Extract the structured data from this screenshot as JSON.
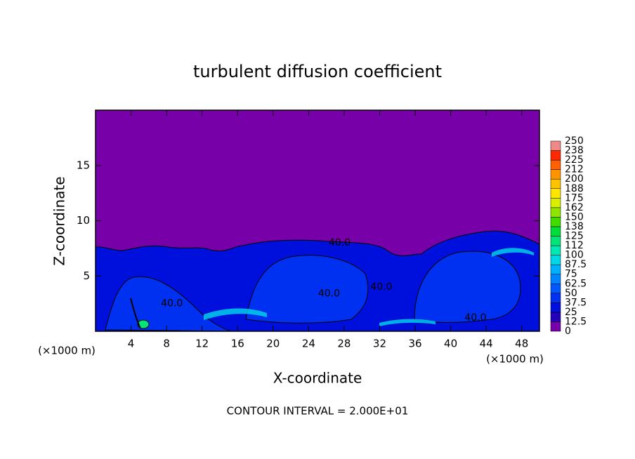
{
  "chart_data": {
    "type": "contour",
    "title": "turbulent diffusion coefficient",
    "x_label": "X-coordinate",
    "y_label": "Z-coordinate",
    "x_unit_label": "(×1000 m)",
    "footer": "CONTOUR INTERVAL = 2.000E+01",
    "xlim": [
      0,
      50
    ],
    "ylim": [
      0,
      20
    ],
    "xticks": [
      4,
      8,
      12,
      16,
      20,
      24,
      28,
      32,
      36,
      40,
      44,
      48
    ],
    "yticks": [
      5,
      10,
      15
    ],
    "colorbar": {
      "levels": [
        0,
        12.5,
        25,
        37.5,
        50,
        62.5,
        75,
        87.5,
        100,
        {
          "value": 112.5,
          "label": "112"
        },
        125,
        {
          "value": 137.5,
          "label": "138"
        },
        150,
        {
          "value": 162.5,
          "label": "162"
        },
        175,
        {
          "value": 187.5,
          "label": "188"
        },
        200,
        {
          "value": 212.5,
          "label": "212"
        },
        225,
        {
          "value": 237.5,
          "label": "238"
        },
        250
      ],
      "colors": [
        "#7800a8",
        "#2400b8",
        "#0010dc",
        "#0030f0",
        "#0058ff",
        "#0084ff",
        "#00b0ff",
        "#00d8e8",
        "#00e8b4",
        "#00e478",
        "#00dc3c",
        "#40dc00",
        "#90e600",
        "#d8f000",
        "#ffe600",
        "#ffc400",
        "#ff9400",
        "#ff6000",
        "#ff2800",
        "#f08888"
      ]
    },
    "contour_labels": [
      {
        "text": "40.0",
        "x": 27.5,
        "y": 8.0
      },
      {
        "text": "40.0",
        "x": 26.3,
        "y": 3.4
      },
      {
        "text": "40.0",
        "x": 32.2,
        "y": 4.0
      },
      {
        "text": "40.0",
        "x": 8.6,
        "y": 2.5
      },
      {
        "text": "40.0",
        "x": 42.8,
        "y": 1.2
      }
    ]
  }
}
